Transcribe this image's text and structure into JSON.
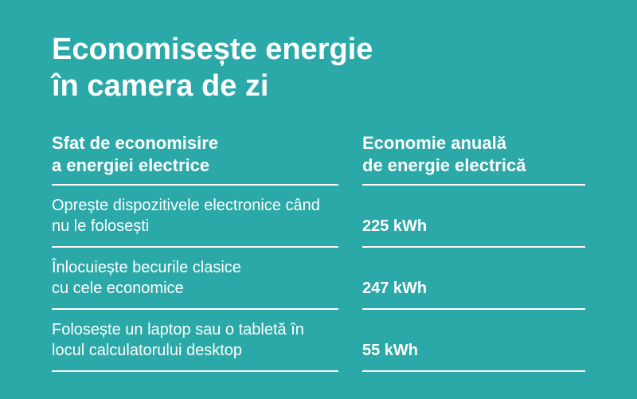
{
  "background_color": "#2ba9a9",
  "text_color": "#ffffff",
  "border_color": "#ffffff",
  "title_line1": "Economisește energie",
  "title_line2": "în camera de zi",
  "table": {
    "headers": {
      "tip": "Sfat de economisire\na energiei electrice",
      "saving": "Economie anuală\nde energie electrică"
    },
    "rows": [
      {
        "tip": "Oprește dispozitivele electronice când nu le folosești",
        "saving": "225 kWh"
      },
      {
        "tip": "Înlocuiește becurile clasice\ncu cele economice",
        "saving": "247 kWh"
      },
      {
        "tip": "Folosește un laptop sau o tabletă în locul calculatorului desktop",
        "saving": "55 kWh"
      }
    ]
  }
}
